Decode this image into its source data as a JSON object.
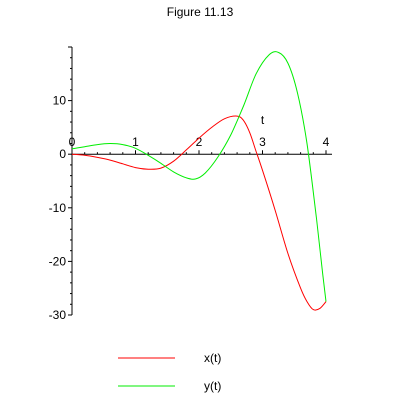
{
  "chart_data": {
    "type": "line",
    "title": "Figure 11.13",
    "xlabel": "t",
    "ylabel": "",
    "xlim": [
      0,
      4
    ],
    "ylim": [
      -30,
      20
    ],
    "xticks": [
      0,
      1,
      2,
      3,
      4
    ],
    "yticks": [
      10,
      0,
      -10,
      -20,
      -30
    ],
    "grid": false,
    "legend_position": "bottom",
    "series": [
      {
        "name": "x(t)",
        "color": "#ff0000",
        "x": [
          0,
          0.2,
          0.4,
          0.6,
          0.8,
          1.0,
          1.2,
          1.4,
          1.6,
          1.8,
          2.0,
          2.2,
          2.4,
          2.6,
          2.7,
          2.8,
          2.9,
          3.0,
          3.2,
          3.4,
          3.6,
          3.7,
          3.8,
          3.9,
          4.0
        ],
        "values": [
          0,
          -0.2,
          -0.6,
          -1.1,
          -1.8,
          -2.5,
          -2.8,
          -2.6,
          -1.3,
          0.8,
          3.0,
          5.0,
          6.6,
          7.1,
          6.3,
          4.0,
          0.5,
          -3.0,
          -10.5,
          -18.5,
          -25.0,
          -27.5,
          -29.0,
          -28.8,
          -27.5
        ]
      },
      {
        "name": "y(t)",
        "color": "#00ee00",
        "x": [
          0,
          0.2,
          0.4,
          0.6,
          0.8,
          1.0,
          1.2,
          1.4,
          1.6,
          1.8,
          1.95,
          2.1,
          2.3,
          2.5,
          2.7,
          2.9,
          3.1,
          3.25,
          3.4,
          3.55,
          3.7,
          3.85,
          3.95,
          4.0
        ],
        "values": [
          1.0,
          1.4,
          1.8,
          2.0,
          1.8,
          1.1,
          -0.2,
          -1.7,
          -3.3,
          -4.4,
          -4.6,
          -3.5,
          -0.5,
          3.6,
          9.0,
          15.0,
          18.5,
          19.0,
          17.0,
          11.5,
          2.0,
          -12.0,
          -22.5,
          -27.5
        ]
      }
    ]
  }
}
